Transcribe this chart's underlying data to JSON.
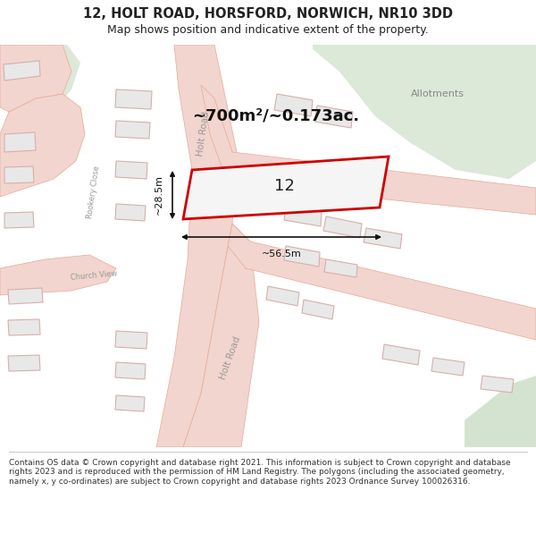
{
  "title": "12, HOLT ROAD, HORSFORD, NORWICH, NR10 3DD",
  "subtitle": "Map shows position and indicative extent of the property.",
  "footer": "Contains OS data © Crown copyright and database right 2021. This information is subject to Crown copyright and database rights 2023 and is reproduced with the permission of HM Land Registry. The polygons (including the associated geometry, namely x, y co-ordinates) are subject to Crown copyright and database rights 2023 Ordnance Survey 100026316.",
  "area_label": "~700m²/~0.173ac.",
  "property_number": "12",
  "dim_width": "~56.5m",
  "dim_height": "~28.5m",
  "road_label_upper": "Holt Road",
  "road_label_lower": "Holt Road",
  "street_label1": "Rookery Close",
  "street_label2": "Church View",
  "allotments_label": "Allotments",
  "map_bg": "#ffffff",
  "road_fill": "#f2d5ce",
  "road_edge": "#e8a898",
  "green1": "#dce8d8",
  "green2": "#d4e3d0",
  "green3": "#dce8d8",
  "bld_fill": "#e8e8e8",
  "bld_edge": "#d4b0aa",
  "prop_stroke": "#cc0000",
  "prop_fill": "#f5f5f5",
  "dim_color": "#111111",
  "text_dark": "#222222",
  "text_road": "#999999",
  "text_allot": "#888888"
}
